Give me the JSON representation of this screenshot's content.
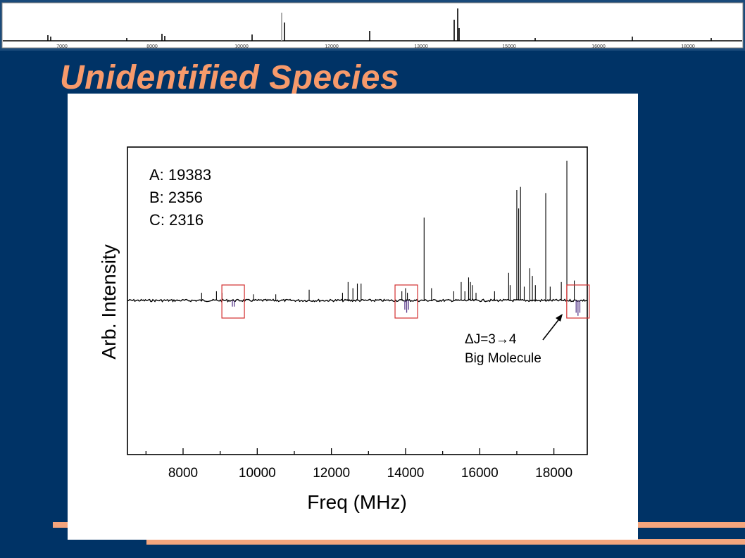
{
  "slide": {
    "title": "Unidentified Species",
    "colors": {
      "background": "#003366",
      "title": "#f79a6b",
      "accent": "#f4a57d",
      "highlight_box": "#d32f2f",
      "negative_trace": "#5a3c8c"
    }
  },
  "overview_spectrum": {
    "tick_labels": [
      "7000",
      "8000",
      "10000",
      "12000",
      "13000",
      "15000",
      "16000",
      "18000"
    ]
  },
  "chart_data": {
    "type": "line",
    "xlabel": "Freq (MHz)",
    "ylabel": "Arb. Intensity",
    "xlim": [
      6500,
      18900
    ],
    "ylim": [
      -1.0,
      1.0
    ],
    "xticks": [
      8000,
      10000,
      12000,
      14000,
      16000,
      18000
    ],
    "grid": false,
    "rotational_constants": [
      "A: 19383",
      "B: 2356",
      "C: 2316"
    ],
    "positive_lines": {
      "x": [
        8500,
        8900,
        9050,
        9900,
        10500,
        11400,
        12300,
        12450,
        12580,
        12700,
        12800,
        13900,
        14000,
        14050,
        14500,
        14700,
        15300,
        15500,
        15600,
        15700,
        15750,
        15800,
        15900,
        16400,
        16780,
        16820,
        17000,
        17050,
        17100,
        17200,
        17350,
        17420,
        17500,
        17780,
        17900,
        18200,
        18350,
        18550
      ],
      "y": [
        0.05,
        0.06,
        0.05,
        0.04,
        0.04,
        0.07,
        0.05,
        0.12,
        0.08,
        0.11,
        0.11,
        0.06,
        0.08,
        0.05,
        0.54,
        0.08,
        0.06,
        0.12,
        0.06,
        0.15,
        0.12,
        0.1,
        0.05,
        0.06,
        0.18,
        0.1,
        0.72,
        0.6,
        0.74,
        0.09,
        0.21,
        0.16,
        0.1,
        0.7,
        0.09,
        0.12,
        0.91,
        0.13
      ]
    },
    "assigned_lines": {
      "name": "ΔJ=3→4",
      "x": [
        9330,
        9380,
        13980,
        14030,
        14080,
        18600,
        18650,
        18700
      ],
      "y": [
        -0.04,
        -0.04,
        -0.06,
        -0.08,
        -0.06,
        -0.08,
        -0.1,
        -0.08
      ]
    },
    "highlight_boxes_x": [
      9350,
      14020,
      18650
    ],
    "annotation": {
      "line1": "ΔJ=3→4",
      "line2": "Big Molecule"
    }
  }
}
